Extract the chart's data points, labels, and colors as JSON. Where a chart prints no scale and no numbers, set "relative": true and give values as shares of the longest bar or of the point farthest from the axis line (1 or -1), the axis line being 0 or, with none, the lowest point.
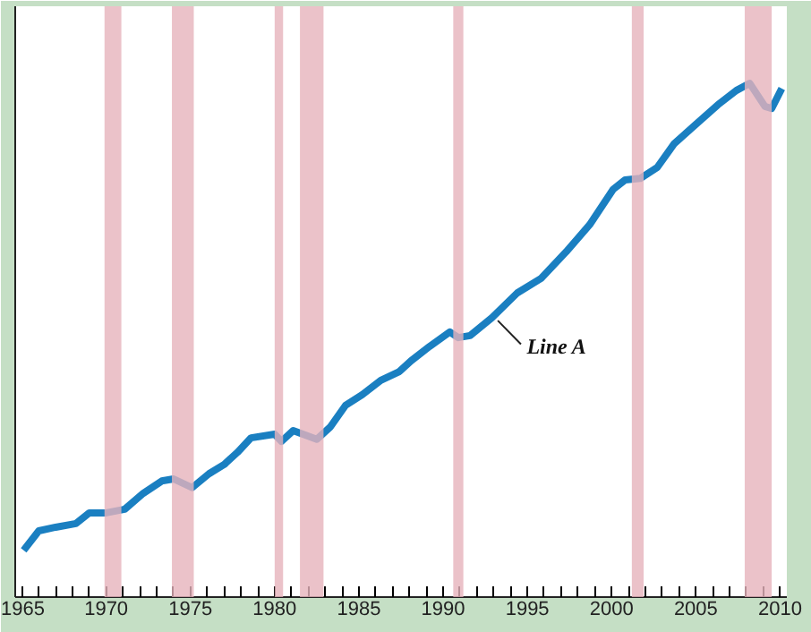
{
  "chart_data": {
    "type": "line",
    "relative": true,
    "tick_labels": "x",
    "grid": false,
    "x": [
      1965.1,
      1966,
      1967,
      1968.2,
      1969,
      1970,
      1971.1,
      1972.2,
      1973.3,
      1974,
      1975.1,
      1976.1,
      1977,
      1977.8,
      1978.6,
      1980,
      1980.4,
      1981.1,
      1982.5,
      1983.3,
      1984.2,
      1985.2,
      1986.3,
      1987.4,
      1988.1,
      1989.2,
      1990.4,
      1990.9,
      1991.6,
      1992.9,
      1994.4,
      1995.8,
      1997.3,
      1998.7,
      2000.1,
      2000.8,
      2001.7,
      2002.7,
      2003.7,
      2005.1,
      2006.3,
      2007.4,
      2008.2,
      2009.1,
      2009.5,
      2010.1
    ],
    "series": [
      {
        "color": "#1a7fc1",
        "values": [
          0.091,
          0.129,
          0.136,
          0.143,
          0.164,
          0.164,
          0.171,
          0.202,
          0.226,
          0.23,
          0.213,
          0.24,
          0.258,
          0.282,
          0.31,
          0.317,
          0.303,
          0.324,
          0.307,
          0.331,
          0.373,
          0.394,
          0.422,
          0.439,
          0.46,
          0.488,
          0.516,
          0.505,
          0.509,
          0.544,
          0.592,
          0.62,
          0.672,
          0.725,
          0.794,
          0.812,
          0.815,
          0.836,
          0.882,
          0.923,
          0.958,
          0.986,
          1,
          0.955,
          0.951,
          0.99
        ]
      }
    ],
    "xlim": [
      1964.6,
      2010.4
    ],
    "xticks": [
      1965,
      {
        "value": 1966,
        "label": null
      },
      {
        "value": 1967,
        "label": null
      },
      {
        "value": 1968,
        "label": null
      },
      {
        "value": 1969,
        "label": null
      },
      1970,
      {
        "value": 1971,
        "label": null
      },
      {
        "value": 1972,
        "label": null
      },
      {
        "value": 1973,
        "label": null
      },
      {
        "value": 1974,
        "label": null
      },
      1975,
      {
        "value": 1976,
        "label": null
      },
      {
        "value": 1977,
        "label": null
      },
      {
        "value": 1978,
        "label": null
      },
      {
        "value": 1979,
        "label": null
      },
      1980,
      {
        "value": 1981,
        "label": null
      },
      {
        "value": 1982,
        "label": null
      },
      {
        "value": 1983,
        "label": null
      },
      {
        "value": 1984,
        "label": null
      },
      1985,
      {
        "value": 1986,
        "label": null
      },
      {
        "value": 1987,
        "label": null
      },
      {
        "value": 1988,
        "label": null
      },
      {
        "value": 1989,
        "label": null
      },
      1990,
      {
        "value": 1991,
        "label": null
      },
      {
        "value": 1992,
        "label": null
      },
      {
        "value": 1993,
        "label": null
      },
      {
        "value": 1994,
        "label": null
      },
      1995,
      {
        "value": 1996,
        "label": null
      },
      {
        "value": 1997,
        "label": null
      },
      {
        "value": 1998,
        "label": null
      },
      {
        "value": 1999,
        "label": null
      },
      2000,
      {
        "value": 2001,
        "label": null
      },
      {
        "value": 2002,
        "label": null
      },
      {
        "value": 2003,
        "label": null
      },
      {
        "value": 2004,
        "label": null
      },
      2005,
      {
        "value": 2006,
        "label": null
      },
      {
        "value": 2007,
        "label": null
      },
      {
        "value": 2008,
        "label": null
      },
      {
        "value": 2009,
        "label": null
      },
      2010
    ],
    "bands": [
      {
        "axis": "x",
        "from": 1969.9,
        "to": 1970.9,
        "color": "#e6b3bb"
      },
      {
        "axis": "x",
        "from": 1973.9,
        "to": 1975.2,
        "color": "#e6b3bb"
      },
      {
        "axis": "x",
        "from": 1980.0,
        "to": 1980.5,
        "color": "#e6b3bb"
      },
      {
        "axis": "x",
        "from": 1981.5,
        "to": 1982.9,
        "color": "#e6b3bb"
      },
      {
        "axis": "x",
        "from": 1990.6,
        "to": 1991.2,
        "color": "#e6b3bb"
      },
      {
        "axis": "x",
        "from": 2001.2,
        "to": 2001.9,
        "color": "#e6b3bb"
      },
      {
        "axis": "x",
        "from": 2007.9,
        "to": 2009.5,
        "color": "#e6b3bb"
      }
    ],
    "annotations": [
      {
        "text": "Line A",
        "x": 1992.9,
        "y": 0.544
      }
    ],
    "line_style": "solid",
    "marker": "none"
  }
}
